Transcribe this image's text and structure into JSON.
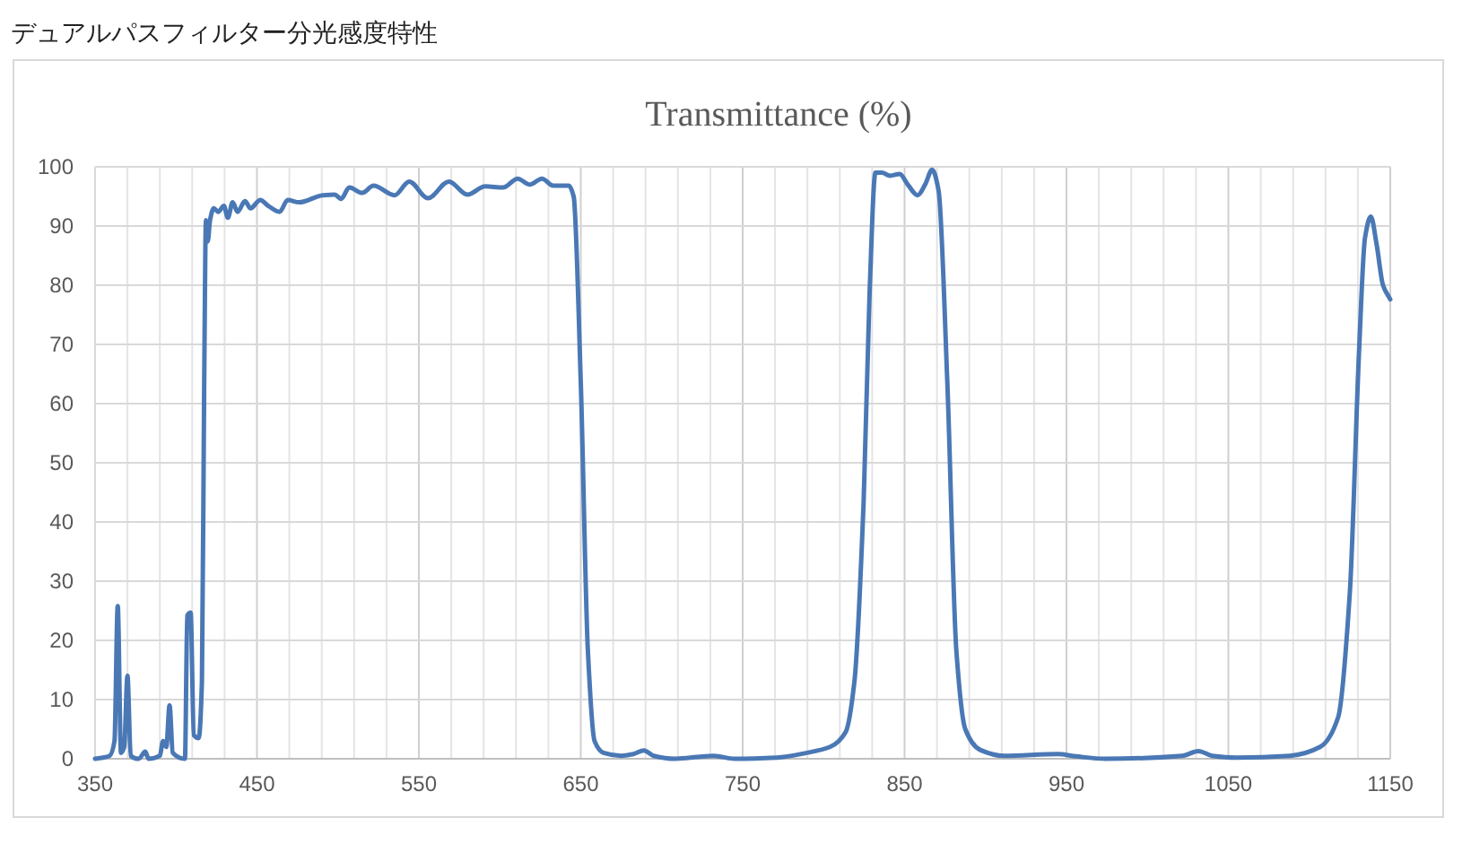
{
  "chart_data": {
    "type": "line",
    "title": "デュアルパスフィルター分光感度特性",
    "subtitle": "Transmittance (%)",
    "xlim": [
      350,
      1150
    ],
    "xticks": [
      350,
      450,
      550,
      650,
      750,
      850,
      950,
      1050,
      1150
    ],
    "ylim": [
      0,
      100
    ],
    "yticks": [
      0,
      10,
      20,
      30,
      40,
      50,
      60,
      70,
      80,
      90,
      100
    ],
    "grid": true,
    "marker": "none",
    "line_style": "solid",
    "series": [
      {
        "color": "#4a78b5",
        "x": [
          350,
          359,
          362,
          364,
          366,
          368,
          370,
          372,
          377,
          381,
          383,
          390,
          392,
          394,
          396,
          398,
          405.5,
          407,
          409,
          411,
          414,
          416,
          417.4,
          418.5,
          419.6,
          421,
          423.3,
          426,
          429.6,
          432,
          435,
          438,
          442.6,
          446,
          452,
          457,
          464,
          469,
          476,
          490.7,
          498,
          502,
          507,
          515,
          522,
          535,
          544,
          555.6,
          568.5,
          580,
          591,
          602,
          611,
          618.5,
          626,
          633,
          642.6,
          645.6,
          650,
          654.4,
          658.5,
          664,
          675,
          682.5,
          689,
          695,
          708,
          732,
          745,
          771,
          789.6,
          804,
          813.6,
          819,
          824.7,
          828.4,
          832,
          836,
          841,
          847,
          852,
          858,
          862.7,
          867,
          871,
          876.4,
          882,
          887.5,
          896.7,
          911.5,
          944.7,
          956,
          974,
          1021.5,
          1031.5,
          1040,
          1055,
          1088,
          1106.7,
          1117.8,
          1125,
          1130.7,
          1134.4,
          1138,
          1141.5,
          1145.5,
          1150
        ],
        "values": [
          0,
          0.5,
          3,
          25.8,
          1,
          2,
          14,
          0.5,
          0,
          1.2,
          0,
          0.5,
          3,
          2,
          9,
          1,
          0,
          24.2,
          24.7,
          4,
          3.5,
          13,
          63.6,
          91,
          87.4,
          91,
          93,
          92.4,
          93.4,
          91.4,
          94,
          92.4,
          94.2,
          93,
          94.4,
          93.4,
          92.4,
          94.4,
          94,
          95.2,
          95.3,
          94.6,
          96.5,
          95.6,
          96.8,
          95.2,
          97.5,
          94.7,
          97.5,
          95.3,
          96.7,
          96.5,
          98,
          97,
          98,
          96.8,
          96.8,
          95,
          63.6,
          18.2,
          3,
          1,
          0.5,
          0.8,
          1.4,
          0.5,
          0,
          0.5,
          0,
          0.2,
          1,
          2,
          4.5,
          13,
          43.4,
          78.8,
          99,
          99,
          98.5,
          98.8,
          97,
          95.2,
          97,
          99.5,
          96,
          63.6,
          18.2,
          5,
          1.5,
          0.5,
          0.8,
          0.4,
          0,
          0.5,
          1.3,
          0.5,
          0.2,
          0.5,
          2,
          7,
          28,
          68.7,
          88,
          91.6,
          87,
          80,
          77.6
        ]
      }
    ]
  }
}
